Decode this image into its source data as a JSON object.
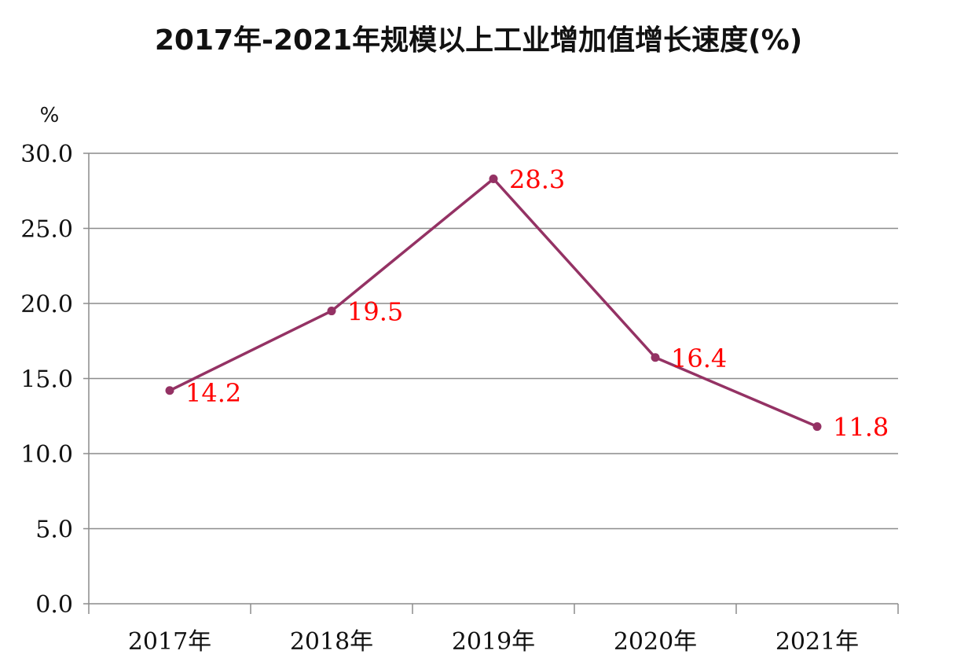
{
  "chart_data": {
    "type": "line",
    "title": "2017年-2021年规模以上工业增加值增长速度(%)",
    "ylabel": "%",
    "xlabel": "",
    "categories": [
      "2017年",
      "2018年",
      "2019年",
      "2020年",
      "2021年"
    ],
    "series": [
      {
        "values": [
          14.2,
          19.5,
          28.3,
          16.4,
          11.8
        ],
        "color": "#943264"
      }
    ],
    "data_labels": [
      "14.2",
      "19.5",
      "28.3",
      "16.4",
      "11.8"
    ],
    "data_label_color": "#ff0000",
    "ylim": [
      0,
      30
    ],
    "yticks": [
      0,
      5,
      10,
      15,
      20,
      25,
      30
    ],
    "ytick_labels": [
      "0.0",
      "5.0",
      "10.0",
      "15.0",
      "20.0",
      "25.0",
      "30.0"
    ],
    "grid": true,
    "legend": "none"
  }
}
